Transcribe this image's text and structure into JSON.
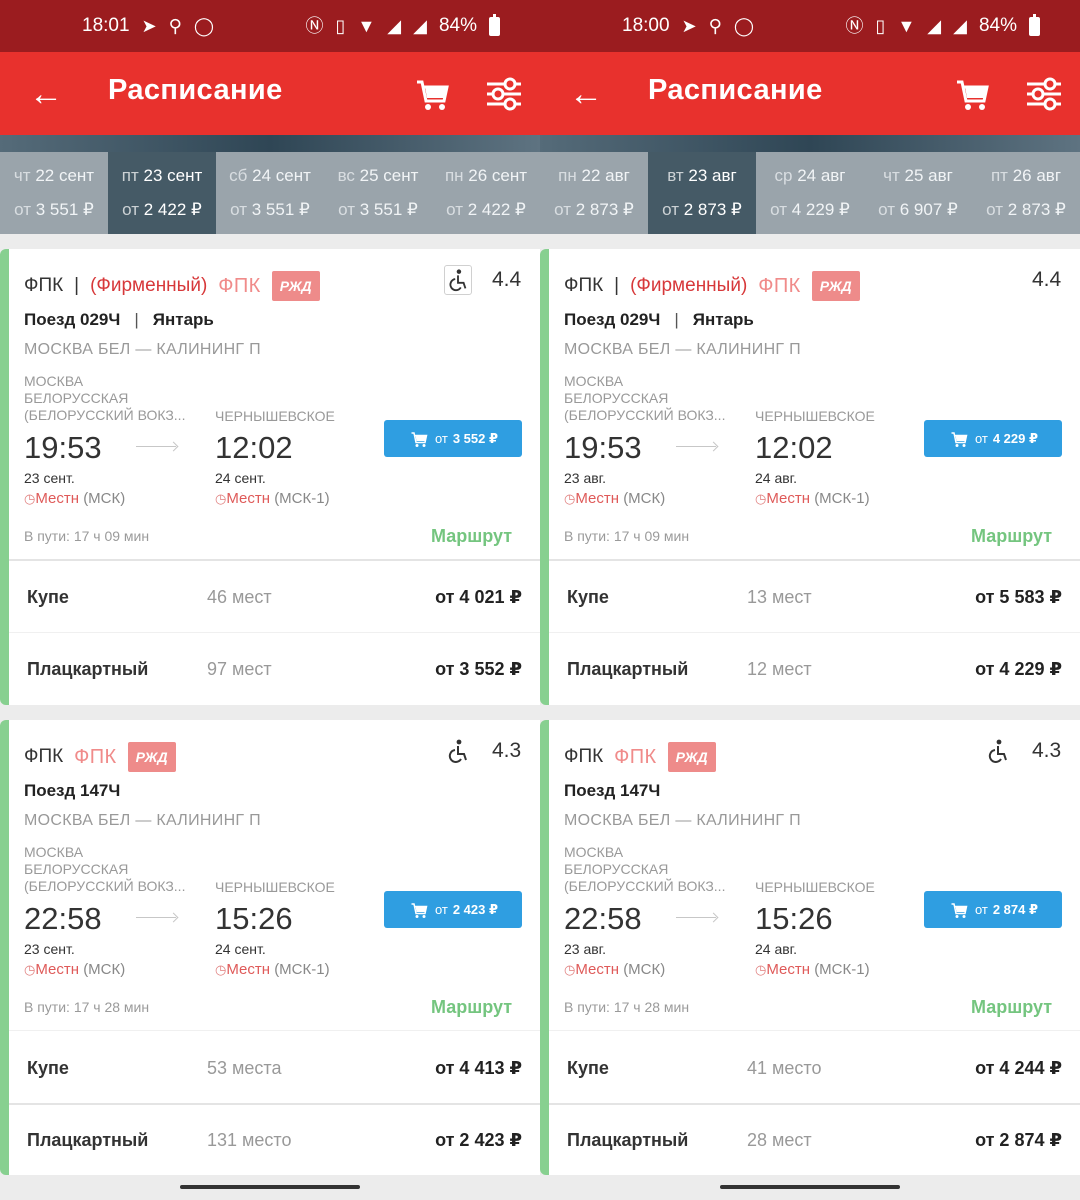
{
  "panels": [
    {
      "status": {
        "time": "18:01",
        "battery": "84%"
      },
      "title": "Расписание",
      "dates": [
        {
          "day": "чт",
          "date": "22 сент",
          "prefix": "от",
          "price": "3 551 ₽"
        },
        {
          "day": "пт",
          "date": "23 сент",
          "prefix": "от",
          "price": "2 422 ₽"
        },
        {
          "day": "сб",
          "date": "24 сент",
          "prefix": "от",
          "price": "3 551 ₽"
        },
        {
          "day": "вс",
          "date": "25 сент",
          "prefix": "от",
          "price": "3 551 ₽"
        },
        {
          "day": "пн",
          "date": "26 сент",
          "prefix": "от",
          "price": "2 422 ₽"
        }
      ],
      "trains": [
        {
          "operator": "ФПК",
          "operator_sep": "|",
          "firm": "(Фирменный)",
          "fpk_logo": "ФПК",
          "rzd_logo": "РЖД",
          "rating": "4.4",
          "train": "Поезд 029Ч",
          "train_sep": "|",
          "name": "Янтарь",
          "route": "МОСКВА БЕЛ — КАЛИНИНГ П",
          "from_l1": "МОСКВА",
          "from_l2": "БЕЛОРУССКАЯ",
          "from_l3": "(БЕЛОРУССКИЙ ВОКЗ...",
          "to_station": "ЧЕРНЫШЕВСКОЕ",
          "dep_time": "19:53",
          "arr_time": "12:02",
          "dep_date": "23 сент.",
          "arr_date": "24 сент.",
          "local_label": "Местн",
          "dep_tz": "(МСК)",
          "arr_tz": "(МСК-1)",
          "buy_prefix": "от",
          "buy_price": "3 552 ₽",
          "travel": "В пути: 17 ч 09 мин",
          "route_link": "Маршрут",
          "classes": [
            {
              "name": "Купе",
              "seats": "46 мест",
              "price": "от 4 021 ₽"
            },
            {
              "name": "Плацкартный",
              "seats": "97 мест",
              "price": "от 3 552 ₽"
            }
          ]
        },
        {
          "operator": "ФПК",
          "fpk_logo": "ФПК",
          "rzd_logo": "РЖД",
          "rating": "4.3",
          "train": "Поезд 147Ч",
          "route": "МОСКВА БЕЛ — КАЛИНИНГ П",
          "from_l1": "МОСКВА",
          "from_l2": "БЕЛОРУССКАЯ",
          "from_l3": "(БЕЛОРУССКИЙ ВОКЗ...",
          "to_station": "ЧЕРНЫШЕВСКОЕ",
          "dep_time": "22:58",
          "arr_time": "15:26",
          "dep_date": "23 сент.",
          "arr_date": "24 сент.",
          "local_label": "Местн",
          "dep_tz": "(МСК)",
          "arr_tz": "(МСК-1)",
          "buy_prefix": "от",
          "buy_price": "2 423 ₽",
          "travel": "В пути: 17 ч 28 мин",
          "route_link": "Маршрут",
          "classes": [
            {
              "name": "Купе",
              "seats": "53 места",
              "price": "от 4 413 ₽"
            },
            {
              "name": "Плацкартный",
              "seats": "131 место",
              "price": "от 2 423 ₽"
            }
          ]
        }
      ]
    },
    {
      "status": {
        "time": "18:00",
        "battery": "84%"
      },
      "title": "Расписание",
      "dates": [
        {
          "day": "пн",
          "date": "22 авг",
          "prefix": "от",
          "price": "2 873 ₽"
        },
        {
          "day": "вт",
          "date": "23 авг",
          "prefix": "от",
          "price": "2 873 ₽"
        },
        {
          "day": "ср",
          "date": "24 авг",
          "prefix": "от",
          "price": "4 229 ₽"
        },
        {
          "day": "чт",
          "date": "25 авг",
          "prefix": "от",
          "price": "6 907 ₽"
        },
        {
          "day": "пт",
          "date": "26 авг",
          "prefix": "от",
          "price": "2 873 ₽"
        }
      ],
      "trains": [
        {
          "operator": "ФПК",
          "operator_sep": "|",
          "firm": "(Фирменный)",
          "fpk_logo": "ФПК",
          "rzd_logo": "РЖД",
          "rating": "4.4",
          "train": "Поезд 029Ч",
          "train_sep": "|",
          "name": "Янтарь",
          "route": "МОСКВА БЕЛ — КАЛИНИНГ П",
          "from_l1": "МОСКВА",
          "from_l2": "БЕЛОРУССКАЯ",
          "from_l3": "(БЕЛОРУССКИЙ ВОКЗ...",
          "to_station": "ЧЕРНЫШЕВСКОЕ",
          "dep_time": "19:53",
          "arr_time": "12:02",
          "dep_date": "23 авг.",
          "arr_date": "24 авг.",
          "local_label": "Местн",
          "dep_tz": "(МСК)",
          "arr_tz": "(МСК-1)",
          "buy_prefix": "от",
          "buy_price": "4 229 ₽",
          "travel": "В пути: 17 ч 09 мин",
          "route_link": "Маршрут",
          "classes": [
            {
              "name": "Купе",
              "seats": "13 мест",
              "price": "от 5 583 ₽"
            },
            {
              "name": "Плацкартный",
              "seats": "12 мест",
              "price": "от 4 229 ₽"
            }
          ]
        },
        {
          "operator": "ФПК",
          "fpk_logo": "ФПК",
          "rzd_logo": "РЖД",
          "rating": "4.3",
          "train": "Поезд 147Ч",
          "route": "МОСКВА БЕЛ — КАЛИНИНГ П",
          "from_l1": "МОСКВА",
          "from_l2": "БЕЛОРУССКАЯ",
          "from_l3": "(БЕЛОРУССКИЙ ВОКЗ...",
          "to_station": "ЧЕРНЫШЕВСКОЕ",
          "dep_time": "22:58",
          "arr_time": "15:26",
          "dep_date": "23 авг.",
          "arr_date": "24 авг.",
          "local_label": "Местн",
          "dep_tz": "(МСК)",
          "arr_tz": "(МСК-1)",
          "buy_prefix": "от",
          "buy_price": "2 874 ₽",
          "travel": "В пути: 17 ч 28 мин",
          "route_link": "Маршрут",
          "classes": [
            {
              "name": "Купе",
              "seats": "41 место",
              "price": "от 4 244 ₽"
            },
            {
              "name": "Плацкартный",
              "seats": "28 мест",
              "price": "от 2 874 ₽"
            }
          ]
        }
      ]
    }
  ]
}
